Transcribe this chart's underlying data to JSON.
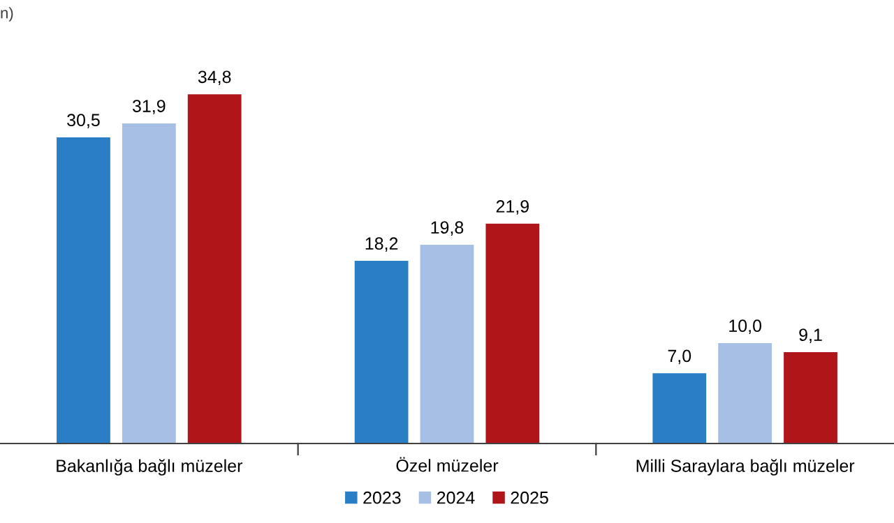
{
  "chart_data": {
    "type": "bar",
    "categories": [
      "Bakanlığa bağlı müzeler",
      "Özel müzeler",
      "Milli Saraylara bağlı müzeler"
    ],
    "series": [
      {
        "name": "2023",
        "color": "#2a7ec6",
        "values": [
          30.5,
          18.2,
          7.0
        ],
        "value_labels": [
          "30,5",
          "18,2",
          "7,0"
        ]
      },
      {
        "name": "2024",
        "color": "#a7bfe4",
        "values": [
          31.9,
          19.8,
          10.0
        ],
        "value_labels": [
          "31,9",
          "19,8",
          "10,0"
        ]
      },
      {
        "name": "2025",
        "color": "#b01519",
        "values": [
          34.8,
          21.9,
          9.1
        ],
        "value_labels": [
          "34,8",
          "21,9",
          "9,1"
        ]
      }
    ],
    "legend": "bottom",
    "grid": false,
    "annotations": [
      "n)"
    ]
  }
}
